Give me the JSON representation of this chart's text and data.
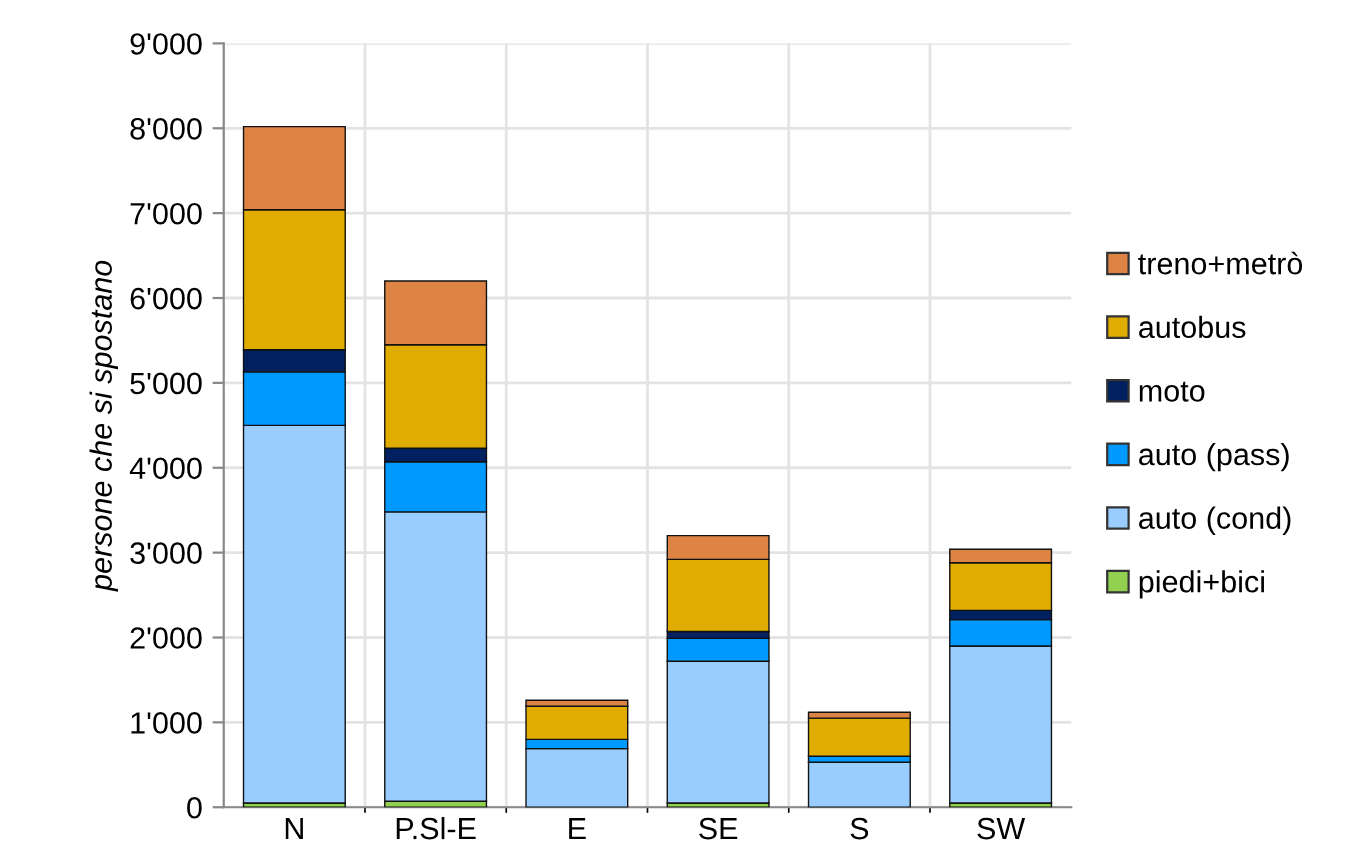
{
  "chart_data": {
    "type": "bar",
    "stacked": true,
    "ylabel": "persone che si spostano",
    "categories": [
      "N",
      "P.Sl-E",
      "E",
      "SE",
      "S",
      "SW"
    ],
    "series": [
      {
        "name": "piedi+bici",
        "color": "#92d050",
        "values": [
          50,
          70,
          0,
          50,
          0,
          50
        ]
      },
      {
        "name": "auto (cond)",
        "color": "#99ccff",
        "values": [
          4450,
          3410,
          690,
          1670,
          530,
          1850
        ]
      },
      {
        "name": "auto (pass)",
        "color": "#0099ff",
        "values": [
          630,
          590,
          110,
          270,
          70,
          310
        ]
      },
      {
        "name": "moto",
        "color": "#002060",
        "values": [
          260,
          160,
          0,
          80,
          0,
          110
        ]
      },
      {
        "name": "autobus",
        "color": "#e0ac00",
        "values": [
          1650,
          1220,
          390,
          850,
          450,
          560
        ]
      },
      {
        "name": "treno+metrò",
        "color": "#dd8444",
        "values": [
          980,
          750,
          70,
          280,
          70,
          160
        ]
      }
    ],
    "ylim": [
      0,
      9000
    ],
    "yticks": [
      {
        "value": 0,
        "label": "0"
      },
      {
        "value": 1000,
        "label": "1'000"
      },
      {
        "value": 2000,
        "label": "2'000"
      },
      {
        "value": 3000,
        "label": "3'000"
      },
      {
        "value": 4000,
        "label": "4'000"
      },
      {
        "value": 5000,
        "label": "5'000"
      },
      {
        "value": 6000,
        "label": "6'000"
      },
      {
        "value": 7000,
        "label": "7'000"
      },
      {
        "value": 8000,
        "label": "8'000"
      },
      {
        "value": 9000,
        "label": "9'000"
      }
    ],
    "grid": true,
    "legend": "right"
  }
}
